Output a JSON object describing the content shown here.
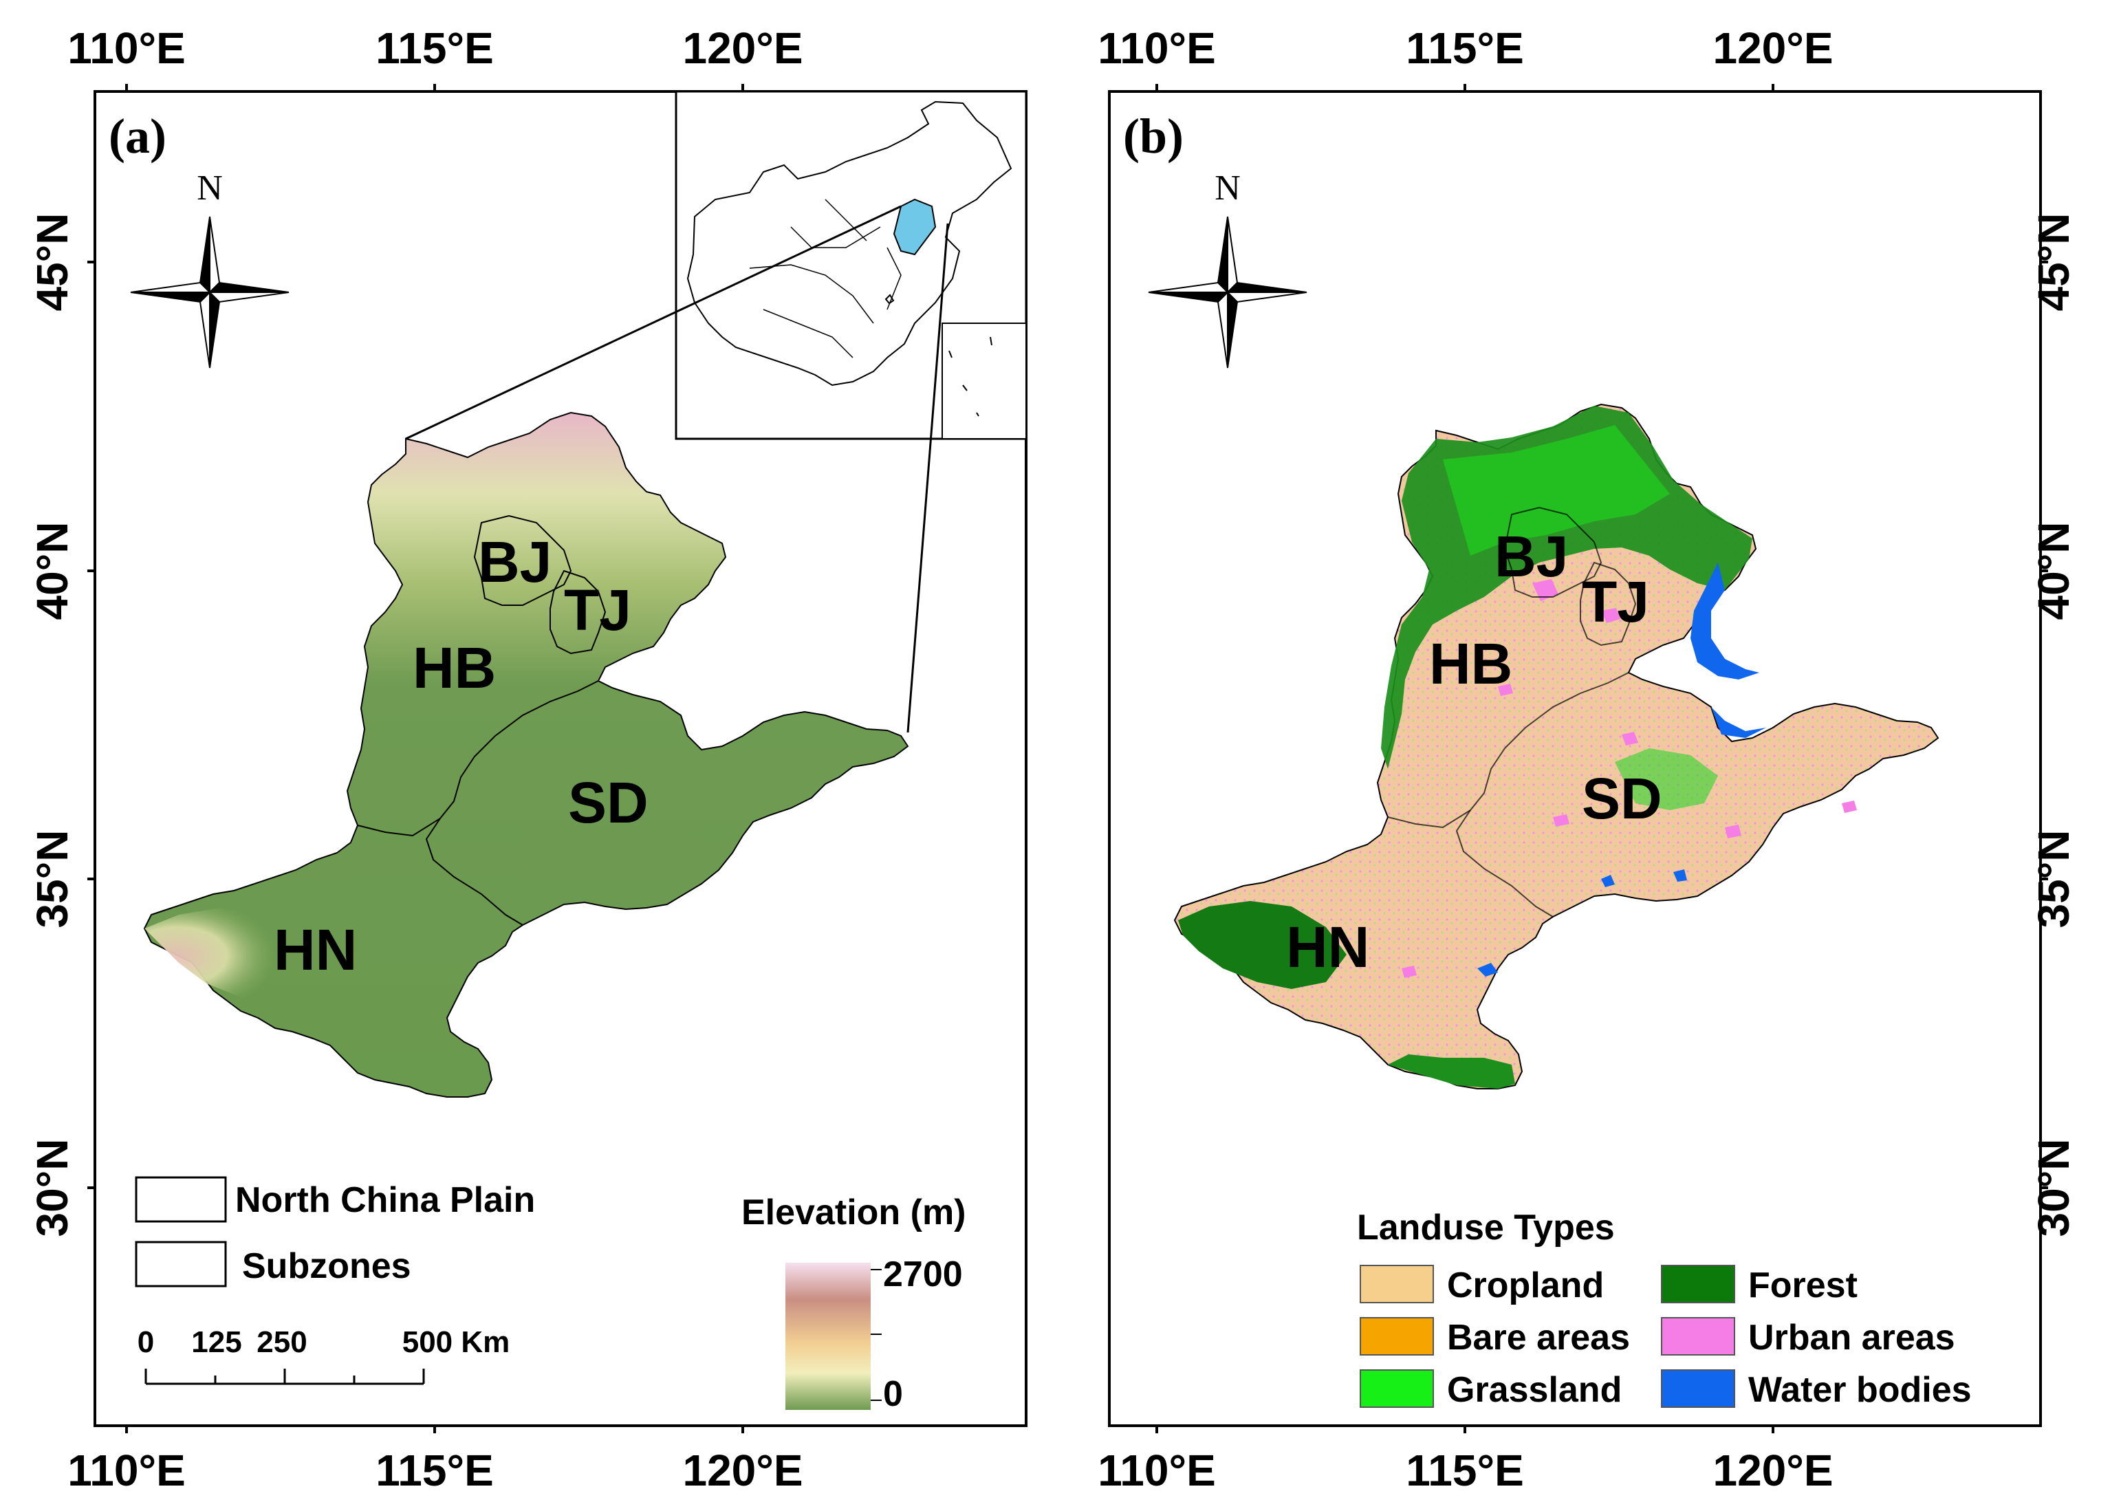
{
  "lon_ticks": [
    "110°E",
    "115°E",
    "120°E"
  ],
  "lat_ticks": [
    "45°N",
    "40°N",
    "35°N",
    "30°N"
  ],
  "panel_a": {
    "label": "(a)",
    "north": "N",
    "regions": {
      "bj": "BJ",
      "tj": "TJ",
      "hb": "HB",
      "sd": "SD",
      "hn": "HN"
    },
    "legend": {
      "boundary": "North China Plain",
      "subzones": "Subzones"
    },
    "scale_bar": {
      "t0": "0",
      "t1": "125",
      "t2": "250",
      "t3": "500 Km"
    },
    "elevation": {
      "title": "Elevation (m)",
      "max": "2700",
      "min": "0",
      "colors": [
        "#f3d3e4",
        "#c98f83",
        "#f2d59e",
        "#f2eebc",
        "#6f9b52"
      ]
    }
  },
  "panel_b": {
    "label": "(b)",
    "north": "N",
    "regions": {
      "bj": "BJ",
      "tj": "TJ",
      "hb": "HB",
      "sd": "SD",
      "hn": "HN"
    },
    "legend": {
      "title": "Landuse Types",
      "items": [
        {
          "label": "Cropland",
          "color": "#f6cf8c"
        },
        {
          "label": "Forest",
          "color": "#0b7a0b"
        },
        {
          "label": "Bare areas",
          "color": "#f6a500"
        },
        {
          "label": "Urban areas",
          "color": "#f57ee6"
        },
        {
          "label": "Grassland",
          "color": "#16f016"
        },
        {
          "label": "Water bodies",
          "color": "#1166ee"
        }
      ]
    }
  },
  "colors": {
    "lowland": "#6f9b52",
    "mid": "#a8bf73",
    "highland": "#efd8a5",
    "peaks": "#e8b8c8",
    "cropland": "#f3c8a0",
    "forest": "#1b8a1b",
    "grassland": "#2ad62a",
    "inset_highlight": "#6fc8e8"
  }
}
